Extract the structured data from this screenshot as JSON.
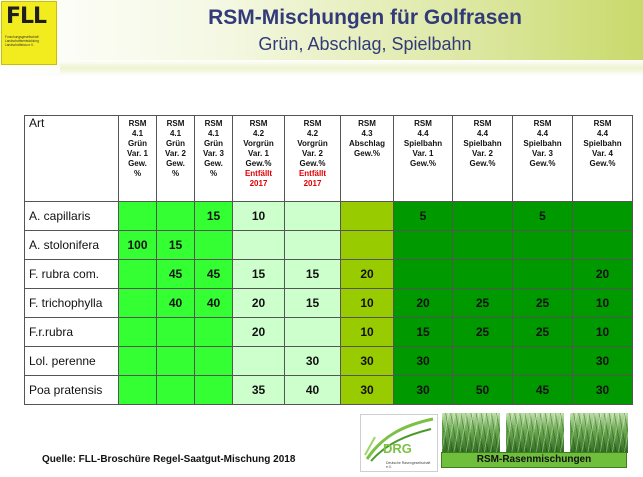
{
  "header": {
    "logo_text": "FLL",
    "logo_subtext": "Forschungsgesellschaft Landschaftsentwicklung Landschaftsbau e.V.",
    "title": "RSM-Mischungen für Golfrasen",
    "subtitle": "Grün, Abschlag, Spielbahn"
  },
  "table": {
    "corner_label": "Art",
    "columns": [
      {
        "lines": [
          "RSM",
          "4.1",
          "Grün",
          "Var. 1",
          "Gew.",
          "%"
        ],
        "note": []
      },
      {
        "lines": [
          "RSM",
          "4.1",
          "Grün",
          "Var. 2",
          "Gew.",
          "%"
        ],
        "note": []
      },
      {
        "lines": [
          "RSM",
          "4.1",
          "Grün",
          "Var. 3",
          "Gew.",
          "%"
        ],
        "note": []
      },
      {
        "lines": [
          "RSM",
          "4.2",
          "Vorgrün",
          "Var. 1",
          "Gew.%"
        ],
        "note": [
          "Entfällt",
          "2017"
        ]
      },
      {
        "lines": [
          "RSM",
          "4.2",
          "Vorgrün",
          "Var. 2",
          "Gew.%"
        ],
        "note": [
          "Entfällt",
          "2017"
        ]
      },
      {
        "lines": [
          "RSM",
          "4.3",
          "Abschlag",
          "Gew.%"
        ],
        "note": []
      },
      {
        "lines": [
          "RSM",
          "4.4",
          "Spielbahn",
          "Var. 1",
          "Gew.%"
        ],
        "note": []
      },
      {
        "lines": [
          "RSM",
          "4.4",
          "Spielbahn",
          "Var. 2",
          "Gew.%"
        ],
        "note": []
      },
      {
        "lines": [
          "RSM",
          "4.4",
          "Spielbahn",
          "Var. 3",
          "Gew.%"
        ],
        "note": []
      },
      {
        "lines": [
          "RSM",
          "4.4",
          "Spielbahn",
          "Var. 4",
          "Gew.%"
        ],
        "note": []
      }
    ],
    "rows": [
      {
        "art": "A. capillaris",
        "values": [
          "",
          "",
          "15",
          "10",
          "",
          "",
          "5",
          "",
          "5",
          ""
        ]
      },
      {
        "art": "A. stolonifera",
        "values": [
          "100",
          "15",
          "",
          "",
          "",
          "",
          "",
          "",
          "",
          ""
        ]
      },
      {
        "art": "F. rubra com.",
        "values": [
          "",
          "45",
          "45",
          "15",
          "15",
          "20",
          "",
          "",
          "",
          "20"
        ]
      },
      {
        "art": "F. trichophylla",
        "values": [
          "",
          "40",
          "40",
          "20",
          "15",
          "10",
          "20",
          "25",
          "25",
          "10"
        ]
      },
      {
        "art": "F.r.rubra",
        "values": [
          "",
          "",
          "",
          "20",
          "",
          "10",
          "15",
          "25",
          "25",
          "10"
        ]
      },
      {
        "art": "Lol. perenne",
        "values": [
          "",
          "",
          "",
          "",
          "30",
          "30",
          "30",
          "",
          "",
          "30"
        ]
      },
      {
        "art": "Poa pratensis",
        "values": [
          "",
          "",
          "",
          "35",
          "40",
          "30",
          "30",
          "50",
          "45",
          "30"
        ]
      }
    ]
  },
  "colors": {
    "gruen": "#33ff33",
    "vorgruen": "#ccffcc",
    "abschlag": "#99cc00",
    "spielbahn": "#009900",
    "note_red": "#e00000",
    "title_blue": "#333a7a"
  },
  "footer": {
    "source": "Quelle: FLL-Broschüre Regel-Saatgut-Mischung 2018",
    "drg_logo": "DRG",
    "drg_caption": "Deutsche Rasengesellschaft e.V.",
    "rsm_label": "RSM-Rasenmischungen"
  }
}
